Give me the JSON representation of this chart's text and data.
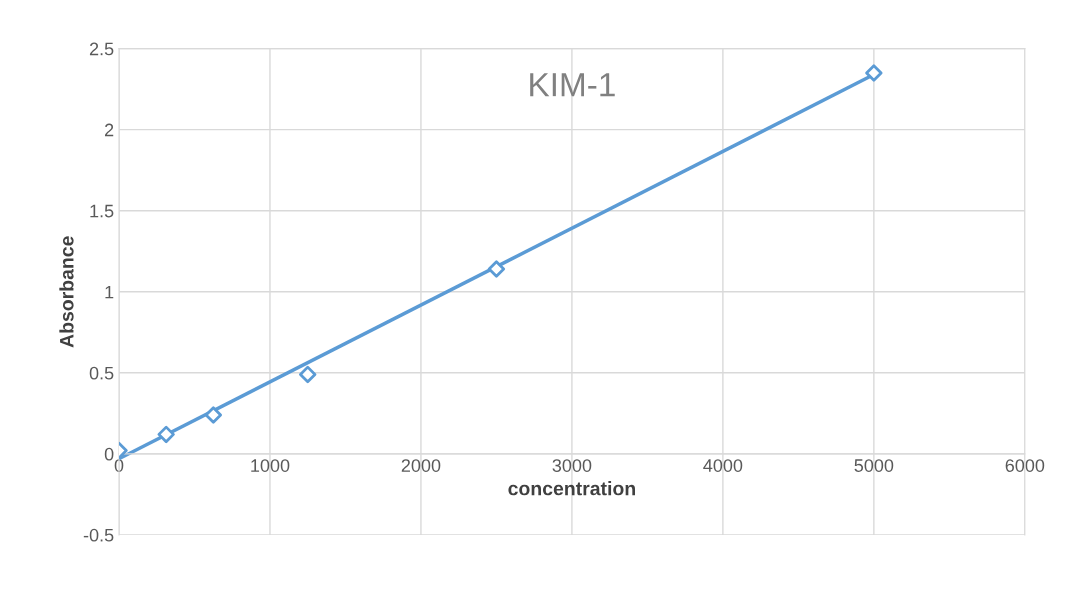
{
  "chart_data": {
    "type": "scatter",
    "title": "KIM-1",
    "xlabel": "concentration",
    "ylabel": "Absorbance",
    "xlim": [
      0,
      6000
    ],
    "xticks": [
      0,
      1000,
      2000,
      3000,
      4000,
      5000,
      6000
    ],
    "ylim": [
      -0.5,
      2.5
    ],
    "yticks": [
      -0.5,
      0,
      0.5,
      1,
      1.5,
      2,
      2.5
    ],
    "grid": true,
    "legend": false,
    "series": [
      {
        "marker": "diamond",
        "color": "#5b9bd5",
        "x": [
          0,
          312.5,
          625,
          1250,
          2500,
          5000
        ],
        "values": [
          0.02,
          0.12,
          0.24,
          0.49,
          1.14,
          2.35
        ]
      },
      {
        "type": "line",
        "color": "#5b9bd5",
        "x": [
          0,
          5000
        ],
        "values": [
          -0.03,
          2.34
        ],
        "line_style": "solid"
      }
    ]
  }
}
